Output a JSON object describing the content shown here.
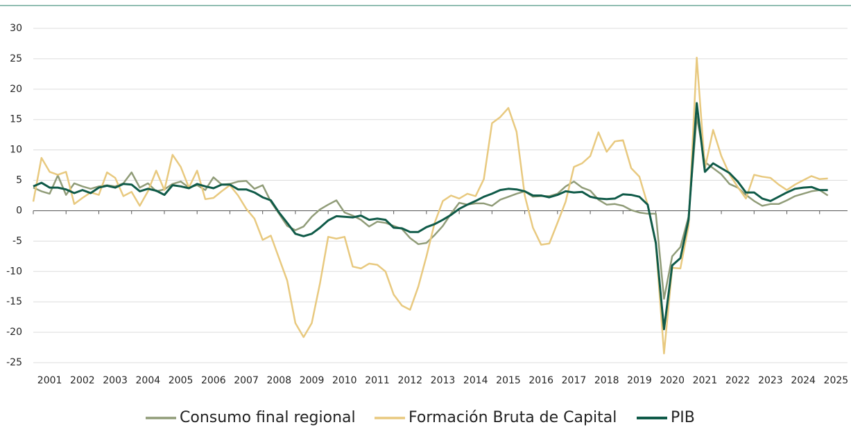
{
  "chart_data": {
    "type": "line",
    "x": [
      2001,
      2001.25,
      2001.5,
      2001.75,
      2002,
      2002.25,
      2002.5,
      2002.75,
      2003,
      2003.25,
      2003.5,
      2003.75,
      2004,
      2004.25,
      2004.5,
      2004.75,
      2005,
      2005.25,
      2005.5,
      2005.75,
      2006,
      2006.25,
      2006.5,
      2006.75,
      2007,
      2007.25,
      2007.5,
      2007.75,
      2008,
      2008.25,
      2008.5,
      2008.75,
      2009,
      2009.25,
      2009.5,
      2009.75,
      2010,
      2010.25,
      2010.5,
      2010.75,
      2011,
      2011.25,
      2011.5,
      2011.75,
      2012,
      2012.25,
      2012.5,
      2012.75,
      2013,
      2013.25,
      2013.5,
      2013.75,
      2014,
      2014.25,
      2014.5,
      2014.75,
      2015,
      2015.25,
      2015.5,
      2015.75,
      2016,
      2016.25,
      2016.5,
      2016.75,
      2017,
      2017.25,
      2017.5,
      2017.75,
      2018,
      2018.25,
      2018.5,
      2018.75,
      2019,
      2019.25,
      2019.5,
      2019.75,
      2020,
      2020.25,
      2020.5,
      2020.75,
      2021,
      2021.25,
      2021.5,
      2021.75,
      2022,
      2022.25,
      2022.5,
      2022.75,
      2023,
      2023.25,
      2023.5,
      2023.75,
      2024,
      2024.25,
      2024.5,
      2024.75,
      2025,
      2025.25
    ],
    "series": [
      {
        "name": "Consumo final regional",
        "color": "#909c78",
        "values": [
          3.8,
          3.2,
          2.8,
          5.8,
          2.6,
          4.5,
          4.0,
          3.6,
          4.0,
          4.2,
          4.0,
          4.5,
          6.3,
          3.8,
          4.5,
          3.2,
          3.5,
          4.4,
          4.8,
          3.8,
          4.2,
          3.4,
          5.5,
          4.3,
          4.4,
          4.8,
          4.9,
          3.6,
          4.2,
          1.5,
          -0.5,
          -2.5,
          -3.2,
          -2.6,
          -1.0,
          0.2,
          1.0,
          1.7,
          -0.3,
          -0.8,
          -1.5,
          -2.6,
          -1.8,
          -2.0,
          -2.5,
          -3.0,
          -4.5,
          -5.5,
          -5.3,
          -4.0,
          -2.5,
          -0.5,
          1.3,
          1.0,
          1.2,
          1.2,
          0.8,
          1.8,
          2.3,
          2.8,
          3.2,
          2.3,
          2.4,
          2.4,
          2.8,
          4.0,
          4.8,
          3.8,
          3.3,
          1.8,
          1.0,
          1.1,
          0.8,
          0.1,
          -0.3,
          -0.5,
          -0.5,
          -14.5,
          -7.5,
          -6.0,
          -1.0,
          15.5,
          8.0,
          7.0,
          6.0,
          4.4,
          3.8,
          2.6,
          1.6,
          0.8,
          1.1,
          1.1,
          1.7,
          2.4,
          2.8,
          3.2,
          3.4,
          2.5
        ]
      },
      {
        "name": "Formación Bruta de Capital",
        "color": "#e8c97f",
        "values": [
          1.5,
          8.7,
          6.4,
          5.9,
          6.4,
          1.1,
          2.1,
          3.0,
          2.6,
          6.3,
          5.4,
          2.4,
          3.1,
          0.8,
          3.2,
          6.6,
          3.4,
          9.2,
          7.2,
          3.8,
          6.6,
          1.9,
          2.1,
          3.2,
          4.2,
          2.5,
          0.3,
          -1.3,
          -4.8,
          -4.1,
          -7.8,
          -11.5,
          -18.5,
          -20.8,
          -18.5,
          -12.0,
          -4.3,
          -4.6,
          -4.3,
          -9.2,
          -9.5,
          -8.7,
          -8.9,
          -10.0,
          -13.8,
          -15.6,
          -16.3,
          -12.5,
          -7.5,
          -2.0,
          1.6,
          2.5,
          2.0,
          2.8,
          2.4,
          5.2,
          14.4,
          15.4,
          16.9,
          13.0,
          2.5,
          -2.8,
          -5.6,
          -5.4,
          -2.0,
          1.5,
          7.2,
          7.8,
          9.0,
          12.9,
          9.7,
          11.4,
          11.6,
          7.0,
          5.6,
          1.0,
          -5.5,
          -23.5,
          -9.4,
          -9.5,
          -2.5,
          25.2,
          7.0,
          13.3,
          9.0,
          6.0,
          3.9,
          2.0,
          5.9,
          5.6,
          5.4,
          4.3,
          3.4,
          4.3,
          5.0,
          5.7,
          5.2,
          5.3
        ]
      },
      {
        "name": "PIB",
        "color": "#0f5a48",
        "values": [
          4.0,
          4.6,
          3.8,
          3.8,
          3.5,
          2.9,
          3.4,
          2.9,
          3.8,
          4.1,
          3.8,
          4.4,
          4.3,
          3.2,
          3.6,
          3.3,
          2.6,
          4.2,
          4.0,
          3.7,
          4.4,
          4.0,
          3.7,
          4.3,
          4.3,
          3.5,
          3.5,
          3.0,
          2.2,
          1.7,
          -0.3,
          -2.0,
          -3.8,
          -4.2,
          -3.8,
          -2.8,
          -1.6,
          -0.9,
          -1.0,
          -1.1,
          -0.8,
          -1.5,
          -1.3,
          -1.5,
          -2.8,
          -2.9,
          -3.5,
          -3.5,
          -2.7,
          -2.2,
          -1.5,
          -0.7,
          0.3,
          1.0,
          1.6,
          2.3,
          2.8,
          3.4,
          3.6,
          3.5,
          3.2,
          2.5,
          2.5,
          2.2,
          2.6,
          3.2,
          3.0,
          3.1,
          2.3,
          2.0,
          1.9,
          2.0,
          2.7,
          2.6,
          2.3,
          1.0,
          -5.3,
          -19.5,
          -9.0,
          -7.8,
          -1.5,
          17.7,
          6.4,
          7.8,
          7.0,
          6.2,
          4.8,
          3.0,
          3.0,
          2.0,
          1.6,
          2.3,
          3.0,
          3.6,
          3.8,
          3.9,
          3.4,
          3.4
        ]
      }
    ],
    "xlim": [
      2001,
      2026
    ],
    "xticks": [
      2001,
      2002,
      2003,
      2004,
      2005,
      2006,
      2007,
      2008,
      2009,
      2010,
      2011,
      2012,
      2013,
      2014,
      2015,
      2016,
      2017,
      2018,
      2019,
      2020,
      2021,
      2022,
      2023,
      2024,
      2025
    ],
    "ylim": [
      -25,
      30
    ],
    "yticks": [
      -25,
      -20,
      -15,
      -10,
      -5,
      0,
      5,
      10,
      15,
      20,
      25,
      30
    ],
    "grid": true,
    "legend": "bottom"
  }
}
